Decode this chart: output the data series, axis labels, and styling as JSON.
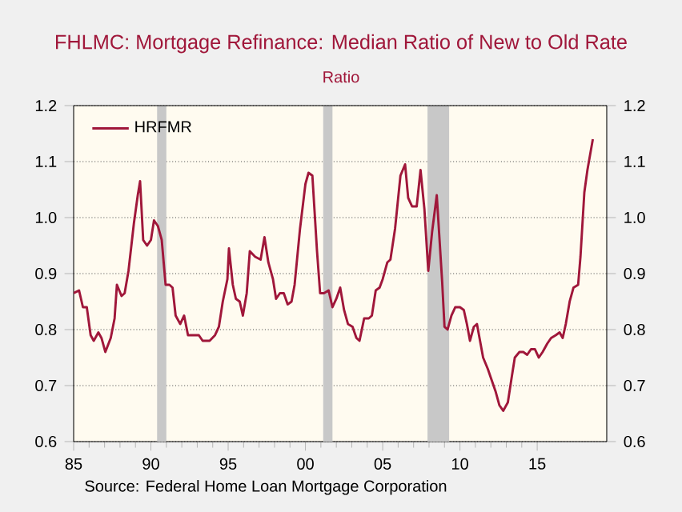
{
  "chart_data": {
    "type": "line",
    "title": "FHLMC: Mortgage Refinance: Median Ratio of New to Old Rate",
    "subtitle": "Ratio",
    "annotations": [
      "Source:  Federal Home Loan Mortgage Corporation"
    ],
    "series": [
      {
        "name": "HRFMR",
        "color": "#a0173a",
        "x": [
          1985.0,
          1985.35,
          1985.6,
          1985.85,
          1986.1,
          1986.3,
          1986.6,
          1986.8,
          1987.05,
          1987.4,
          1987.65,
          1987.8,
          1988.1,
          1988.3,
          1988.55,
          1988.9,
          1989.15,
          1989.3,
          1989.5,
          1989.75,
          1990.0,
          1990.2,
          1990.45,
          1990.7,
          1990.95,
          1991.2,
          1991.4,
          1991.6,
          1991.9,
          1992.15,
          1992.4,
          1992.75,
          1993.1,
          1993.35,
          1993.8,
          1994.15,
          1994.4,
          1994.65,
          1994.95,
          1995.05,
          1995.3,
          1995.5,
          1995.75,
          1995.95,
          1996.2,
          1996.4,
          1996.75,
          1997.1,
          1997.35,
          1997.6,
          1997.9,
          1998.1,
          1998.35,
          1998.6,
          1998.85,
          1999.1,
          1999.3,
          1999.65,
          2000.0,
          2000.2,
          2000.45,
          2000.75,
          2000.95,
          2001.2,
          2001.5,
          2001.75,
          2002.0,
          2002.25,
          2002.5,
          2002.75,
          2003.05,
          2003.3,
          2003.5,
          2003.8,
          2004.1,
          2004.3,
          2004.55,
          2004.8,
          2005.0,
          2005.3,
          2005.5,
          2005.8,
          2006.15,
          2006.45,
          2006.65,
          2006.9,
          2007.2,
          2007.45,
          2007.7,
          2007.95,
          2008.2,
          2008.5,
          2008.85,
          2009.0,
          2009.2,
          2009.45,
          2009.7,
          2010.0,
          2010.25,
          2010.45,
          2010.65,
          2010.9,
          2011.1,
          2011.3,
          2011.5,
          2011.8,
          2012.05,
          2012.3,
          2012.55,
          2012.8,
          2013.1,
          2013.35,
          2013.55,
          2013.85,
          2014.1,
          2014.35,
          2014.6,
          2014.85,
          2015.1,
          2015.35,
          2015.65,
          2015.9,
          2016.2,
          2016.45,
          2016.65,
          2016.85,
          2017.1,
          2017.35,
          2017.65,
          2017.8,
          2018.05,
          2018.25,
          2018.6
        ],
        "values": [
          0.865,
          0.87,
          0.84,
          0.84,
          0.79,
          0.78,
          0.795,
          0.785,
          0.76,
          0.785,
          0.82,
          0.88,
          0.86,
          0.865,
          0.905,
          0.99,
          1.04,
          1.065,
          0.96,
          0.95,
          0.96,
          0.995,
          0.985,
          0.96,
          0.88,
          0.88,
          0.875,
          0.825,
          0.81,
          0.825,
          0.79,
          0.79,
          0.79,
          0.78,
          0.78,
          0.79,
          0.805,
          0.85,
          0.89,
          0.945,
          0.88,
          0.855,
          0.85,
          0.825,
          0.865,
          0.94,
          0.93,
          0.925,
          0.965,
          0.92,
          0.89,
          0.855,
          0.865,
          0.865,
          0.845,
          0.85,
          0.88,
          0.98,
          1.06,
          1.08,
          1.075,
          0.94,
          0.865,
          0.865,
          0.87,
          0.84,
          0.855,
          0.875,
          0.835,
          0.81,
          0.805,
          0.785,
          0.78,
          0.82,
          0.82,
          0.825,
          0.87,
          0.875,
          0.89,
          0.92,
          0.925,
          0.98,
          1.075,
          1.095,
          1.035,
          1.02,
          1.02,
          1.085,
          1.015,
          0.905,
          0.975,
          1.04,
          0.885,
          0.805,
          0.8,
          0.825,
          0.84,
          0.84,
          0.835,
          0.81,
          0.78,
          0.805,
          0.81,
          0.78,
          0.75,
          0.73,
          0.71,
          0.69,
          0.665,
          0.655,
          0.67,
          0.715,
          0.75,
          0.76,
          0.76,
          0.755,
          0.765,
          0.765,
          0.75,
          0.76,
          0.775,
          0.785,
          0.79,
          0.795,
          0.785,
          0.81,
          0.85,
          0.875,
          0.88,
          0.93,
          1.045,
          1.085,
          1.14
        ]
      }
    ],
    "xlim": [
      1985,
      2019.5
    ],
    "xticks": [
      {
        "value": 1985,
        "label": "85"
      },
      {
        "value": 1990,
        "label": "90"
      },
      {
        "value": 1995,
        "label": "95"
      },
      {
        "value": 2000,
        "label": "00"
      },
      {
        "value": 2005,
        "label": "05"
      },
      {
        "value": 2010,
        "label": "10"
      },
      {
        "value": 2015,
        "label": "15"
      }
    ],
    "ylim": [
      0.6,
      1.2
    ],
    "yticks": [
      0.6,
      0.7,
      0.8,
      0.9,
      {
        "value": 1.0,
        "label": "1.0"
      },
      1.1,
      1.2
    ],
    "y2lim": [
      0.6,
      1.2
    ],
    "y2ticks": [
      0.6,
      0.7,
      0.8,
      0.9,
      {
        "value": 1.0,
        "label": "1.0"
      },
      1.1,
      1.2
    ],
    "bands": [
      {
        "axis": "x",
        "from": 1990.4,
        "to": 1991.0,
        "color": "#c8c8c8"
      },
      {
        "axis": "x",
        "from": 2001.15,
        "to": 2001.75,
        "color": "#c8c8c8"
      },
      {
        "axis": "x",
        "from": 2007.9,
        "to": 2009.3,
        "color": "#c8c8c8"
      }
    ],
    "grid": "y",
    "legend": "top left",
    "line_style": "solid",
    "marker": "none"
  }
}
